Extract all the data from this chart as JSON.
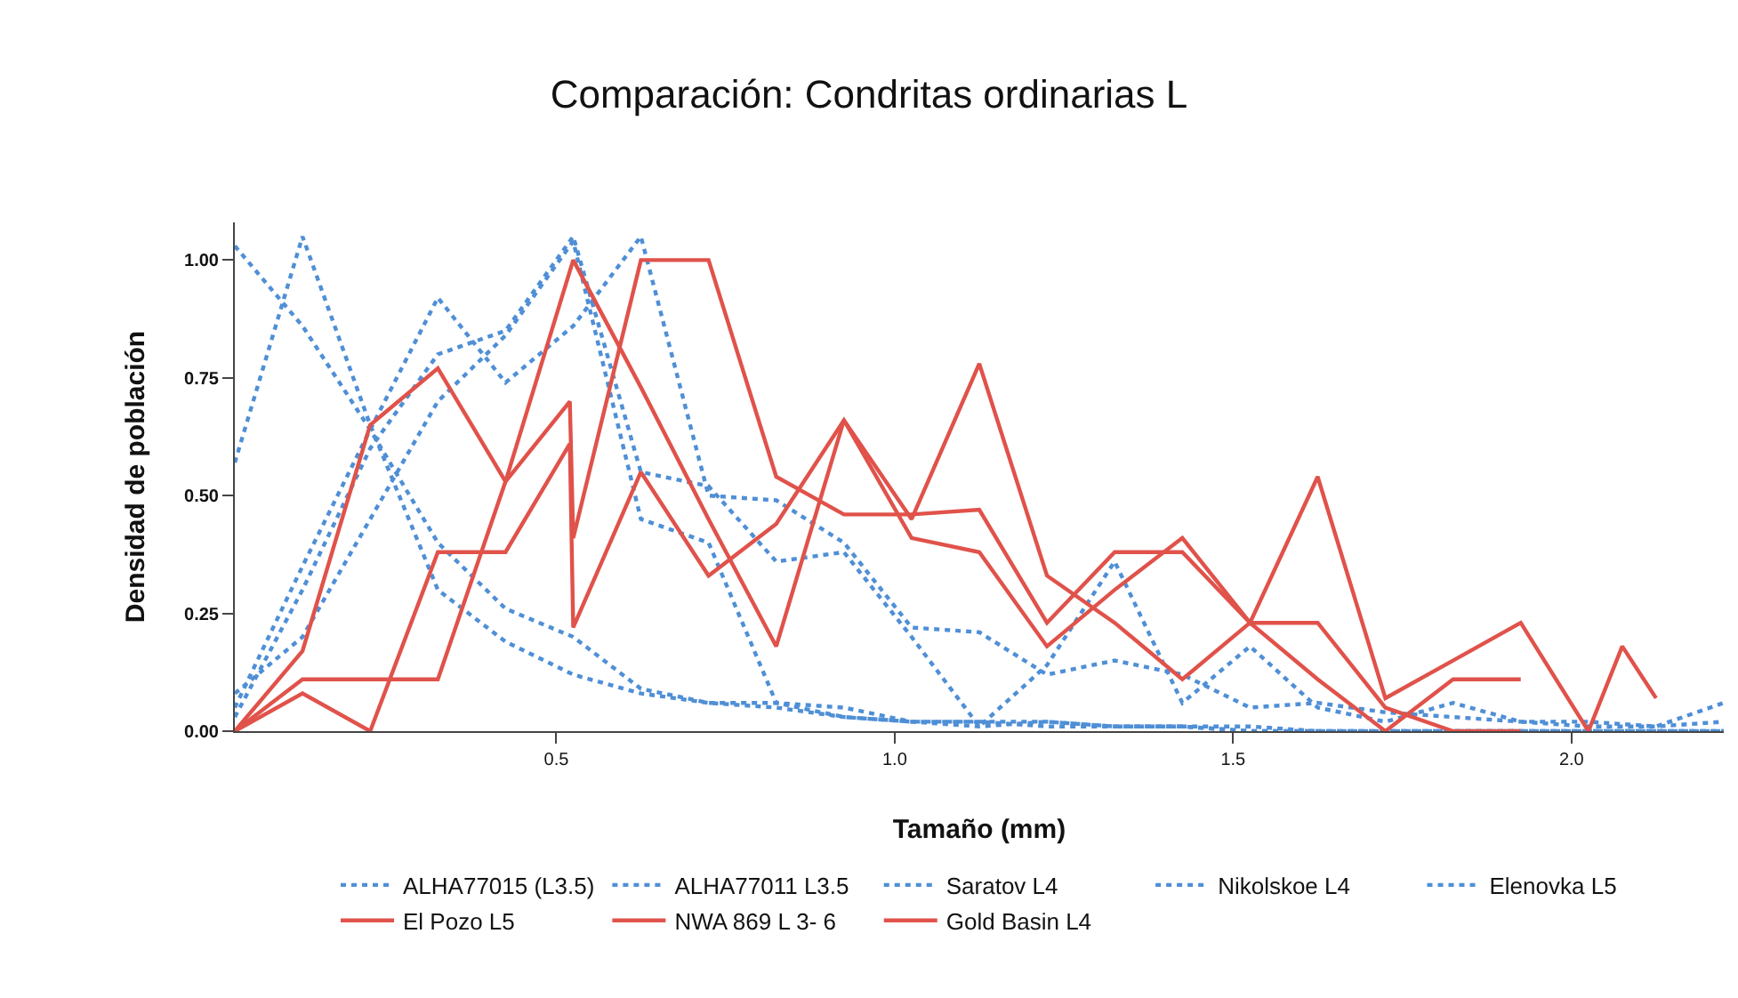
{
  "chart_data": {
    "type": "line",
    "title": "Comparación: Condritas ordinarias L",
    "xlabel": "Tamaño (mm)",
    "ylabel": "Densidad de población",
    "x": [
      0.025,
      0.125,
      0.225,
      0.325,
      0.425,
      0.525,
      0.625,
      0.725,
      0.825,
      0.925,
      1.025,
      1.125,
      1.225,
      1.325,
      1.425,
      1.525,
      1.625,
      1.725,
      1.825,
      1.925,
      2.025,
      2.125,
      2.225
    ],
    "xlim": [
      0.025,
      2.225
    ],
    "ylim": [
      0,
      1.08
    ],
    "xticks": [
      {
        "value": 0.5,
        "label": "0.5"
      },
      {
        "value": 1.0,
        "label": "1.0"
      },
      {
        "value": 1.5,
        "label": "1.5"
      },
      {
        "value": 2.0,
        "label": "2.0"
      }
    ],
    "yticks": [
      {
        "value": 0,
        "label": "0.00"
      },
      {
        "value": 0.25,
        "label": "0.25"
      },
      {
        "value": 0.5,
        "label": "0.50"
      },
      {
        "value": 0.75,
        "label": "0.75"
      },
      {
        "value": 1.0,
        "label": "1.00"
      }
    ],
    "legend": "bottom",
    "marker": "none",
    "series": [
      {
        "name": "ALHA77015 (L3.5)",
        "color": "#4f8fd6",
        "line_style": "dotted",
        "values": [
          1.03,
          0.86,
          0.64,
          0.4,
          0.26,
          0.2,
          0.09,
          0.06,
          0.06,
          0.03,
          0.02,
          0.02,
          0.01,
          0.01,
          0.01,
          0,
          0,
          0,
          0,
          0,
          0,
          0,
          0
        ]
      },
      {
        "name": "ALHA77011 L3.5",
        "color": "#4f8fd6",
        "line_style": "dotted",
        "values": [
          0.57,
          1.05,
          0.65,
          0.3,
          0.19,
          0.12,
          0.08,
          0.06,
          0.05,
          0.03,
          0.02,
          0.02,
          0.02,
          0.01,
          0.01,
          0.01,
          0,
          0,
          0,
          0,
          0,
          0,
          0
        ]
      },
      {
        "name": "Saratov L4",
        "color": "#4f8fd6",
        "line_style": "dotted",
        "values": [
          0.05,
          0.35,
          0.64,
          0.92,
          0.74,
          0.86,
          1.05,
          0.5,
          0.49,
          0.4,
          0.22,
          0.21,
          0.12,
          0.15,
          0.12,
          0.05,
          0.06,
          0.04,
          0.03,
          0.02,
          0.02,
          0.01,
          0.06
        ]
      },
      {
        "name": "Nikolskoe L4",
        "color": "#4f8fd6",
        "line_style": "dotted",
        "values": [
          0.03,
          0.3,
          0.6,
          0.8,
          0.85,
          1.05,
          0.55,
          0.52,
          0.36,
          0.38,
          0.2,
          0.01,
          0.14,
          0.36,
          0.06,
          0.18,
          0.05,
          0.02,
          0.06,
          0.02,
          0.01,
          0.01,
          0.02
        ]
      },
      {
        "name": "Elenovka L5",
        "color": "#4f8fd6",
        "line_style": "dotted",
        "values": [
          0.08,
          0.2,
          0.45,
          0.7,
          0.84,
          1.04,
          0.45,
          0.4,
          0.06,
          0.05,
          0.02,
          0.01,
          0.02,
          0.01,
          0.01,
          0,
          0,
          0,
          0,
          0,
          0,
          0,
          0
        ]
      },
      {
        "name": "El Pozo L5",
        "color": "#e0524a",
        "line_style": "solid",
        "x": [
          0.025,
          0.125,
          0.225,
          0.325,
          0.425,
          0.52,
          0.525,
          0.625,
          0.725,
          0.825,
          0.925,
          1.025,
          1.125,
          1.225,
          1.325,
          1.425,
          1.525,
          1.625,
          1.725,
          1.825,
          1.925,
          2.025,
          2.075,
          2.125
        ],
        "values": [
          0,
          0.17,
          0.65,
          0.77,
          0.53,
          0.7,
          0.41,
          1.0,
          1.0,
          0.54,
          0.46,
          0.46,
          0.47,
          0.23,
          0.38,
          0.38,
          0.23,
          0.54,
          0.07,
          0.15,
          0.23,
          0,
          0.18,
          0.07
        ]
      },
      {
        "name": "NWA 869 L 3- 6",
        "color": "#e0524a",
        "line_style": "solid",
        "x": [
          0.025,
          0.125,
          0.225,
          0.325,
          0.425,
          0.525,
          0.625,
          0.725,
          0.825,
          0.925,
          1.025,
          1.125,
          1.225,
          1.325,
          1.425,
          1.525,
          1.625,
          1.725,
          1.825,
          1.925
        ],
        "values": [
          0,
          0.11,
          0.11,
          0.11,
          0.53,
          1.0,
          0.73,
          0.45,
          0.18,
          0.66,
          0.45,
          0.78,
          0.33,
          0.23,
          0.11,
          0.23,
          0.23,
          0.05,
          0,
          0
        ]
      },
      {
        "name": "Gold Basin L4",
        "color": "#e0524a",
        "line_style": "solid",
        "x": [
          0.025,
          0.125,
          0.225,
          0.325,
          0.425,
          0.52,
          0.525,
          0.625,
          0.725,
          0.825,
          0.925,
          1.025,
          1.125,
          1.225,
          1.325,
          1.425,
          1.525,
          1.625,
          1.725,
          1.825,
          1.925
        ],
        "values": [
          0,
          0.08,
          0,
          0.38,
          0.38,
          0.61,
          0.22,
          0.55,
          0.33,
          0.44,
          0.66,
          0.41,
          0.38,
          0.18,
          0.3,
          0.41,
          0.23,
          0.11,
          0,
          0.11,
          0.11
        ]
      }
    ]
  }
}
